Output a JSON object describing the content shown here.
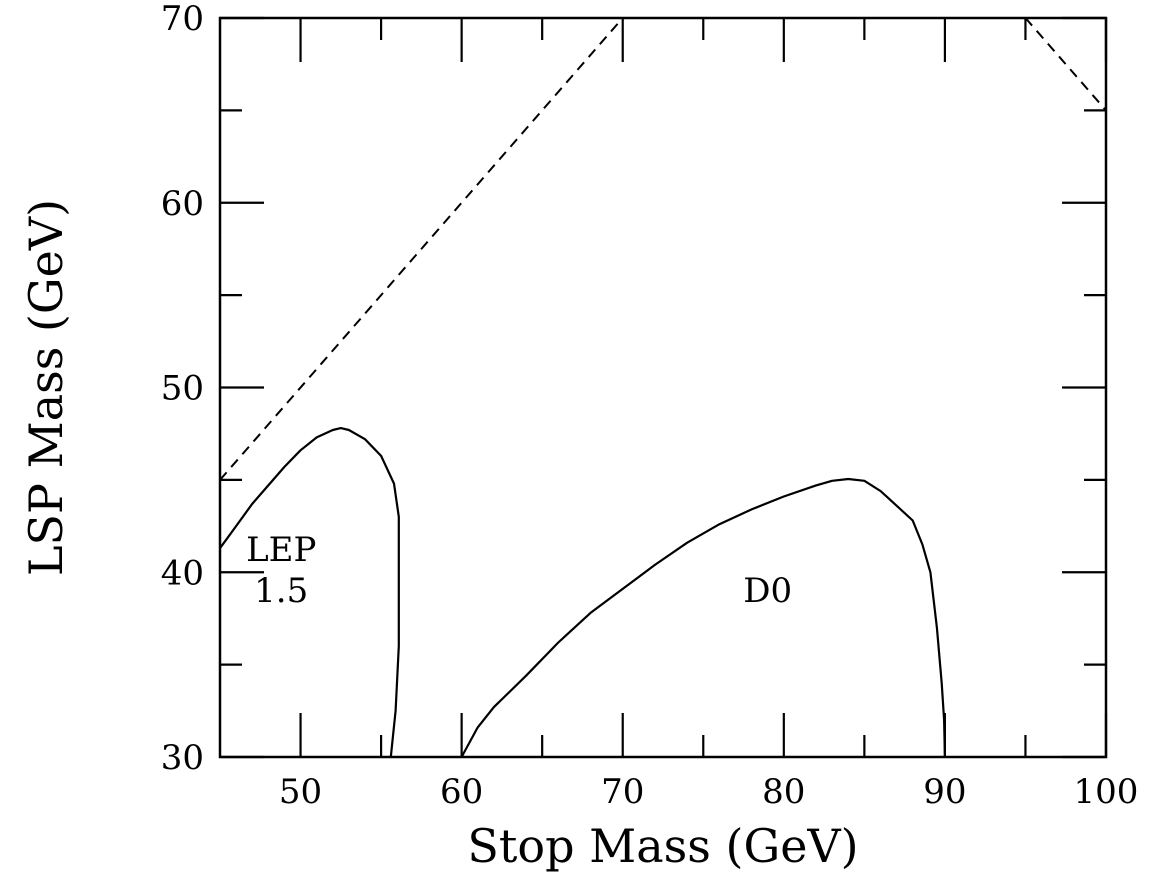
{
  "chart_data": {
    "type": "line",
    "title": "",
    "xlabel": "Stop Mass (GeV)",
    "ylabel": "LSP Mass (GeV)",
    "xlim": [
      45,
      100
    ],
    "ylim": [
      30,
      70
    ],
    "x_ticks": [
      {
        "value": 50,
        "label": "50"
      },
      {
        "value": 60,
        "label": "60"
      },
      {
        "value": 70,
        "label": "70"
      },
      {
        "value": 80,
        "label": "80"
      },
      {
        "value": 90,
        "label": "90"
      },
      {
        "value": 100,
        "label": "100"
      }
    ],
    "x_minor_ticks": [
      55,
      65,
      75,
      85,
      95
    ],
    "y_ticks": [
      {
        "value": 30,
        "label": "30"
      },
      {
        "value": 40,
        "label": "40"
      },
      {
        "value": 50,
        "label": "50"
      },
      {
        "value": 60,
        "label": "60"
      },
      {
        "value": 70,
        "label": "70"
      }
    ],
    "y_minor_ticks": [
      35,
      45,
      55,
      65
    ],
    "grid": false,
    "legend": "none",
    "series": [
      {
        "style": "solid",
        "points": [
          [
            45,
            41.3
          ],
          [
            46,
            42.5
          ],
          [
            47,
            43.7
          ],
          [
            48,
            44.7
          ],
          [
            49,
            45.7
          ],
          [
            50,
            46.6
          ],
          [
            51,
            47.3
          ],
          [
            52,
            47.7
          ],
          [
            52.5,
            47.8
          ],
          [
            53,
            47.7
          ],
          [
            54,
            47.2
          ],
          [
            55,
            46.3
          ],
          [
            55.8,
            44.8
          ],
          [
            56.1,
            43.0
          ],
          [
            56.1,
            40.0
          ],
          [
            56.1,
            36.0
          ],
          [
            55.9,
            32.5
          ],
          [
            55.6,
            30.0
          ]
        ]
      },
      {
        "style": "solid",
        "points": [
          [
            60,
            30.0
          ],
          [
            61,
            31.6
          ],
          [
            62,
            32.7
          ],
          [
            64,
            34.4
          ],
          [
            66,
            36.2
          ],
          [
            68,
            37.8
          ],
          [
            70,
            39.1
          ],
          [
            72,
            40.4
          ],
          [
            74,
            41.6
          ],
          [
            76,
            42.6
          ],
          [
            78,
            43.4
          ],
          [
            80,
            44.1
          ],
          [
            82,
            44.7
          ],
          [
            83,
            44.95
          ],
          [
            84,
            45.05
          ],
          [
            85,
            44.95
          ],
          [
            86,
            44.4
          ],
          [
            87,
            43.6
          ],
          [
            88,
            42.8
          ],
          [
            88.6,
            41.5
          ],
          [
            89.1,
            40.0
          ],
          [
            89.5,
            37.0
          ],
          [
            89.8,
            34.0
          ],
          [
            89.95,
            32.0
          ],
          [
            90.0,
            30.0
          ]
        ]
      },
      {
        "style": "dashed",
        "points": [
          [
            45,
            45
          ],
          [
            70,
            70
          ]
        ]
      },
      {
        "style": "dashed",
        "points": [
          [
            95,
            70
          ],
          [
            100,
            65
          ]
        ]
      }
    ],
    "annotations": [
      {
        "text": "LEP",
        "x": 48.8,
        "y": 40.6
      },
      {
        "text": "1.5",
        "x": 48.8,
        "y": 38.4
      },
      {
        "text": "D0",
        "x": 79.0,
        "y": 38.4
      }
    ]
  }
}
